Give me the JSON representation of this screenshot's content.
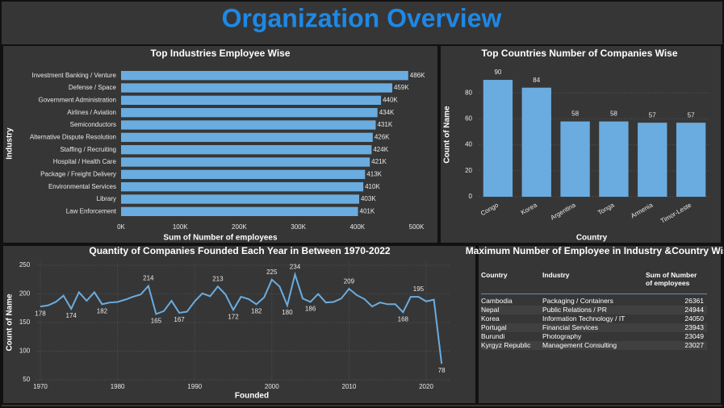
{
  "title": "Organization Overview",
  "chart_data": [
    {
      "type": "bar",
      "horizontal": true,
      "title": "Top Industries Employee Wise",
      "xlabel": "Sum of Number of employees",
      "ylabel": "Industry",
      "color": "#6aacdf",
      "categories": [
        "Investment Banking / Venture",
        "Defense / Space",
        "Government Administration",
        "Airlines / Aviation",
        "Semiconductors",
        "Alternative Dispute Resolution",
        "Staffing / Recruiting",
        "Hospital / Health Care",
        "Package / Freight Delivery",
        "Environmental Services",
        "Library",
        "Law Enforcement"
      ],
      "values": [
        486000,
        459000,
        440000,
        434000,
        431000,
        426000,
        424000,
        421000,
        413000,
        410000,
        403000,
        401000
      ],
      "value_labels": [
        "486K",
        "459K",
        "440K",
        "434K",
        "431K",
        "426K",
        "424K",
        "421K",
        "413K",
        "410K",
        "403K",
        "401K"
      ],
      "xlim": [
        0,
        500000
      ],
      "xticks": [
        {
          "value": 0,
          "label": "0K"
        },
        {
          "value": 100000,
          "label": "100K"
        },
        {
          "value": 200000,
          "label": "200K"
        },
        {
          "value": 300000,
          "label": "300K"
        },
        {
          "value": 400000,
          "label": "400K"
        },
        {
          "value": 500000,
          "label": "500K"
        }
      ],
      "grid": false
    },
    {
      "type": "bar",
      "title": "Top Countries Number of Companies Wise",
      "xlabel": "Country",
      "ylabel": "Count of Name",
      "color": "#6aacdf",
      "categories": [
        "Congo",
        "Korea",
        "Argentina",
        "Tonga",
        "Armenia",
        "Timor-Leste"
      ],
      "values": [
        90,
        84,
        58,
        58,
        57,
        57
      ],
      "ylim": [
        0,
        95
      ],
      "yticks": [
        0,
        20,
        40,
        60,
        80
      ],
      "grid": true
    },
    {
      "type": "line",
      "title": "Quantity of Companies Founded Each Year in Between 1970-2022",
      "xlabel": "Founded",
      "ylabel": "Count of Name",
      "color": "#6aacdf",
      "x": [
        1970,
        1971,
        1972,
        1973,
        1974,
        1975,
        1976,
        1977,
        1978,
        1979,
        1980,
        1981,
        1982,
        1983,
        1984,
        1985,
        1986,
        1987,
        1988,
        1989,
        1990,
        1991,
        1992,
        1993,
        1994,
        1995,
        1996,
        1997,
        1998,
        1999,
        2000,
        2001,
        2002,
        2003,
        2004,
        2005,
        2006,
        2007,
        2008,
        2009,
        2010,
        2011,
        2012,
        2013,
        2014,
        2015,
        2016,
        2017,
        2018,
        2019,
        2020,
        2021,
        2022
      ],
      "values": [
        178,
        180,
        186,
        197,
        174,
        203,
        188,
        203,
        182,
        185,
        186,
        190,
        195,
        199,
        214,
        165,
        170,
        188,
        167,
        169,
        187,
        201,
        196,
        213,
        199,
        172,
        195,
        191,
        182,
        194,
        225,
        213,
        180,
        234,
        192,
        186,
        200,
        185,
        186,
        192,
        209,
        198,
        191,
        178,
        185,
        182,
        182,
        168,
        195,
        195,
        187,
        190,
        78
      ],
      "value_labels": [
        "178",
        null,
        null,
        null,
        "174",
        null,
        null,
        null,
        "182",
        null,
        null,
        null,
        null,
        null,
        "214",
        "165",
        null,
        null,
        "167",
        null,
        null,
        null,
        null,
        "213",
        null,
        "172",
        null,
        null,
        "182",
        null,
        "225",
        null,
        "180",
        "234",
        null,
        "186",
        null,
        null,
        null,
        null,
        "209",
        null,
        null,
        null,
        null,
        null,
        null,
        "168",
        null,
        "195",
        null,
        null,
        "78"
      ],
      "xlim": [
        1969.5,
        2023
      ],
      "xticks": [
        1970,
        1980,
        1990,
        2000,
        2010,
        2020
      ],
      "ylim": [
        50,
        255
      ],
      "yticks": [
        50,
        100,
        150,
        200,
        250
      ],
      "grid": true
    }
  ],
  "table": {
    "title": "Maximum Number of Employee in Industry &Country Wise",
    "columns": [
      "Country",
      "Industry",
      "Sum of Number of employees"
    ],
    "rows": [
      [
        "Cambodia",
        "Packaging / Containers",
        "26361"
      ],
      [
        "Nepal",
        "Public Relations / PR",
        "24944"
      ],
      [
        "Korea",
        "Information Technology / IT",
        "24050"
      ],
      [
        "Portugal",
        "Financial Services",
        "23943"
      ],
      [
        "Burundi",
        "Photography",
        "23049"
      ],
      [
        "Kyrgyz Republic",
        "Management Consulting",
        "23027"
      ]
    ]
  }
}
